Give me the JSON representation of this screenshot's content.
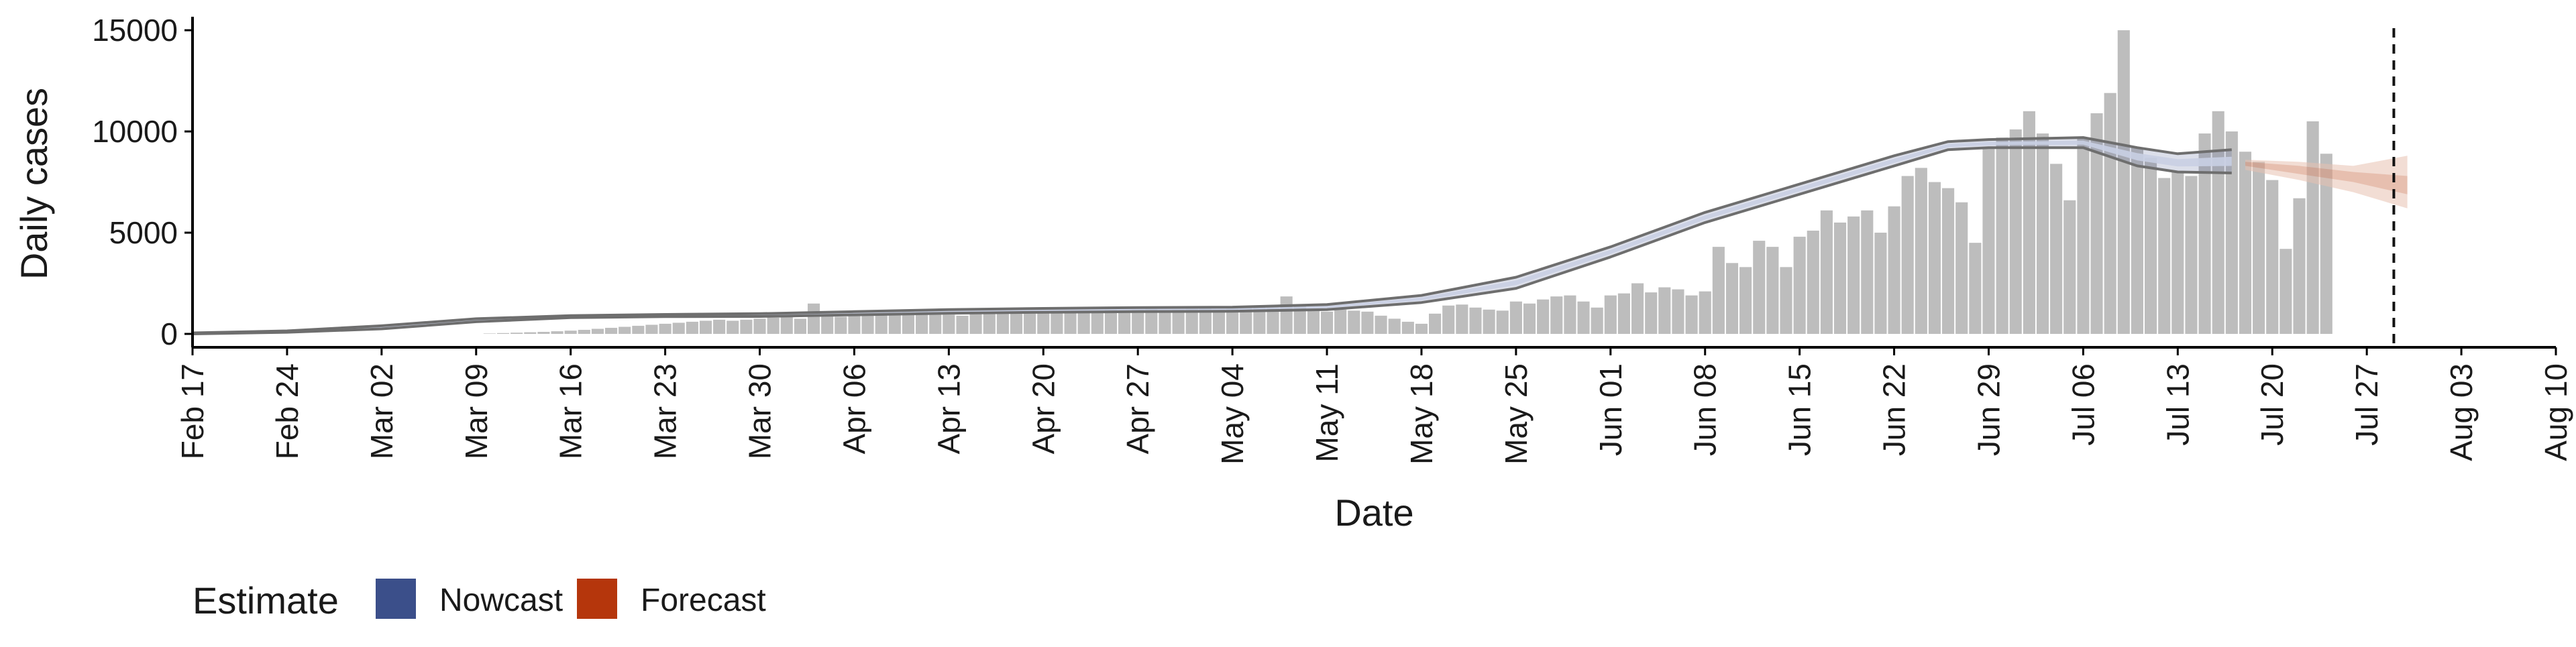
{
  "chart_data": {
    "type": "bar",
    "title": "",
    "xlabel": "Date",
    "ylabel": "Daily cases",
    "xlim": [
      "2020-02-17",
      "2020-08-10"
    ],
    "ylim": [
      0,
      15500
    ],
    "y_ticks": [
      0,
      5000,
      10000,
      15000
    ],
    "y_tick_labels": [
      "0",
      "5000",
      "10000",
      "15000"
    ],
    "x_ticks": [
      "2020-02-17",
      "2020-02-24",
      "2020-03-02",
      "2020-03-09",
      "2020-03-16",
      "2020-03-23",
      "2020-03-30",
      "2020-04-06",
      "2020-04-13",
      "2020-04-20",
      "2020-04-27",
      "2020-05-04",
      "2020-05-11",
      "2020-05-18",
      "2020-05-25",
      "2020-06-01",
      "2020-06-08",
      "2020-06-15",
      "2020-06-22",
      "2020-06-29",
      "2020-07-06",
      "2020-07-13",
      "2020-07-20",
      "2020-07-27",
      "2020-08-03",
      "2020-08-10"
    ],
    "x_tick_labels": [
      "Feb 17",
      "Feb 24",
      "Mar 02",
      "Mar 09",
      "Mar 16",
      "Mar 23",
      "Mar 30",
      "Apr 06",
      "Apr 13",
      "Apr 20",
      "Apr 27",
      "May 04",
      "May 11",
      "May 18",
      "May 25",
      "Jun 01",
      "Jun 08",
      "Jun 15",
      "Jun 22",
      "Jun 29",
      "Jul 06",
      "Jul 13",
      "Jul 20",
      "Jul 27",
      "Aug 03",
      "Aug 10"
    ],
    "grid": false,
    "reference_line": {
      "date": "2020-07-29",
      "style": "dashed"
    },
    "bars": {
      "start_date": "2020-03-10",
      "color": "#bdbdbd",
      "values": [
        20,
        40,
        60,
        80,
        100,
        130,
        160,
        200,
        250,
        300,
        350,
        400,
        450,
        500,
        550,
        600,
        650,
        700,
        650,
        700,
        750,
        800,
        850,
        750,
        1500,
        900,
        850,
        900,
        950,
        1000,
        1050,
        1100,
        1200,
        1000,
        950,
        900,
        1050,
        1000,
        1050,
        1100,
        1000,
        1100,
        1050,
        1100,
        1150,
        1100,
        1200,
        1150,
        1200,
        1250,
        1150,
        1200,
        1250,
        1300,
        1200,
        1250,
        1350,
        1400,
        1300,
        1850,
        1400,
        1200,
        1100,
        1200,
        1150,
        1100,
        900,
        750,
        600,
        500,
        1000,
        1400,
        1450,
        1300,
        1200,
        1150,
        1600,
        1500,
        1700,
        1850,
        1900,
        1600,
        1300,
        1900,
        2000,
        2500,
        2050,
        2300,
        2200,
        1900,
        2100,
        4300,
        3500,
        3300,
        4600,
        4300,
        3300,
        4800,
        5100,
        6100,
        5500,
        5800,
        6100,
        5000,
        6300,
        7800,
        8200,
        7500,
        7200,
        6500,
        4500,
        9200,
        9700,
        10100,
        11000,
        9900,
        8400,
        6600,
        9700,
        10900,
        11900,
        15000,
        9200,
        8700,
        7700,
        8000,
        7800,
        9900,
        11000,
        10000,
        9000,
        8500,
        7600,
        4200,
        6700,
        10500,
        8900
      ]
    },
    "series": [
      {
        "name": "Nowcast",
        "color": "#3b4f8a",
        "x_start": "2020-02-24",
        "x_end": "2020-07-19",
        "inner_band_color": "#c9cfe3",
        "lower": [
          [
            0,
            0
          ],
          [
            7,
            80
          ],
          [
            14,
            250
          ],
          [
            21,
            600
          ],
          [
            28,
            800
          ],
          [
            35,
            850
          ],
          [
            42,
            860
          ],
          [
            49,
            940
          ],
          [
            56,
            1020
          ],
          [
            63,
            1070
          ],
          [
            70,
            1100
          ],
          [
            77,
            1120
          ],
          [
            84,
            1200
          ],
          [
            91,
            1550
          ],
          [
            98,
            2250
          ],
          [
            105,
            3800
          ],
          [
            112,
            5500
          ],
          [
            119,
            6900
          ],
          [
            126,
            8300
          ],
          [
            130,
            9100
          ],
          [
            133,
            9200
          ],
          [
            140,
            9200
          ],
          [
            144,
            8300
          ],
          [
            147,
            8000
          ],
          [
            151,
            7950
          ]
        ],
        "upper": [
          [
            0,
            50
          ],
          [
            7,
            150
          ],
          [
            14,
            400
          ],
          [
            21,
            750
          ],
          [
            28,
            900
          ],
          [
            35,
            960
          ],
          [
            42,
            1000
          ],
          [
            49,
            1100
          ],
          [
            56,
            1200
          ],
          [
            63,
            1260
          ],
          [
            70,
            1300
          ],
          [
            77,
            1320
          ],
          [
            84,
            1450
          ],
          [
            91,
            1900
          ],
          [
            98,
            2800
          ],
          [
            105,
            4300
          ],
          [
            112,
            6000
          ],
          [
            119,
            7400
          ],
          [
            126,
            8800
          ],
          [
            130,
            9500
          ],
          [
            133,
            9600
          ],
          [
            140,
            9700
          ],
          [
            144,
            9200
          ],
          [
            147,
            8900
          ],
          [
            151,
            9100
          ]
        ]
      },
      {
        "name": "Forecast",
        "color": "#b5360c",
        "x_start": "2020-07-20",
        "x_end": "2020-08-01",
        "band_color": "#e8c1b0",
        "outer_lower": [
          [
            152,
            8100
          ],
          [
            156,
            7600
          ],
          [
            160,
            7000
          ],
          [
            164,
            6200
          ]
        ],
        "outer_upper": [
          [
            152,
            8600
          ],
          [
            156,
            8500
          ],
          [
            160,
            8300
          ],
          [
            164,
            8800
          ]
        ],
        "inner_lower": [
          [
            152,
            8300
          ],
          [
            156,
            7900
          ],
          [
            160,
            7500
          ],
          [
            164,
            6900
          ]
        ],
        "inner_upper": [
          [
            152,
            8500
          ],
          [
            156,
            8300
          ],
          [
            160,
            8000
          ],
          [
            164,
            7800
          ]
        ]
      }
    ],
    "legend": {
      "title": "Estimate",
      "position": "bottom-left",
      "items": [
        {
          "label": "Nowcast",
          "color": "#3b4f8a"
        },
        {
          "label": "Forecast",
          "color": "#b5360c"
        }
      ]
    }
  }
}
